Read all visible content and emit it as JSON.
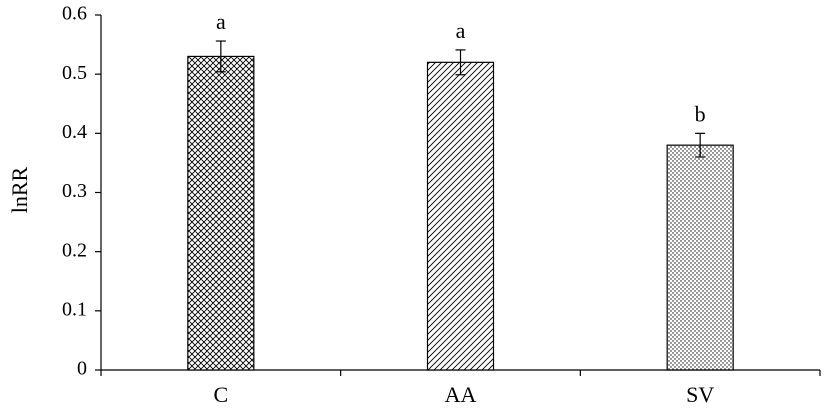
{
  "chart_data": {
    "type": "bar",
    "categories": [
      "C",
      "AA",
      "SV"
    ],
    "values": [
      0.53,
      0.52,
      0.38
    ],
    "errors": [
      0.026,
      0.021,
      0.02
    ],
    "significance_letters": [
      "a",
      "a",
      "b"
    ],
    "patterns": [
      "crosshatch",
      "diagonal",
      "dots"
    ],
    "title": "",
    "xlabel": "",
    "ylabel": "lnRR",
    "ylim": [
      0,
      0.6
    ],
    "yticks": [
      "0",
      "0.1",
      "0.2",
      "0.3",
      "0.4",
      "0.5",
      "0.6"
    ],
    "grid": false,
    "legend": "none",
    "colors": {
      "bar_outline": "#000000",
      "pattern": "#000000",
      "background": "#ffffff"
    }
  }
}
